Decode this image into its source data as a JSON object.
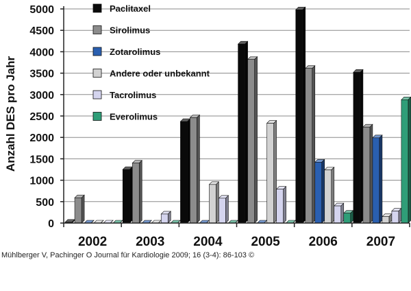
{
  "chart_data": {
    "type": "bar",
    "title": "",
    "xlabel": "",
    "ylabel": "Anzahl DES pro Jahr",
    "ylim": [
      0,
      5000
    ],
    "yticks": [
      0,
      500,
      1000,
      1500,
      2000,
      2500,
      3000,
      3500,
      4000,
      4500,
      5000
    ],
    "grid": true,
    "legend_position": "top-left",
    "categories": [
      "2002",
      "2003",
      "2004",
      "2005",
      "2006",
      "2007"
    ],
    "series": [
      {
        "name": "Paclitaxel",
        "color": "#0a0a0a",
        "values": [
          20,
          1250,
          2370,
          4180,
          4980,
          3520
        ]
      },
      {
        "name": "Sirolimus",
        "color": "#8c8c8c",
        "values": [
          590,
          1400,
          2460,
          3820,
          3610,
          2240
        ]
      },
      {
        "name": "Zotarolimus",
        "color": "#2a5fb0",
        "values": [
          0,
          0,
          0,
          0,
          1420,
          1990
        ]
      },
      {
        "name": "Andere oder unbekannt",
        "color": "#d2d2d2",
        "values": [
          0,
          0,
          900,
          2330,
          1240,
          150
        ]
      },
      {
        "name": "Tacrolimus",
        "color": "#d4d4ee",
        "values": [
          0,
          210,
          580,
          790,
          400,
          280
        ]
      },
      {
        "name": "Everolimus",
        "color": "#2f9e78",
        "values": [
          0,
          0,
          0,
          0,
          230,
          2880
        ]
      }
    ]
  },
  "caption": "Mühlberger V, Pachinger O Journal für Kardiologie 2009; 16 (3-4): 86-103 ©"
}
